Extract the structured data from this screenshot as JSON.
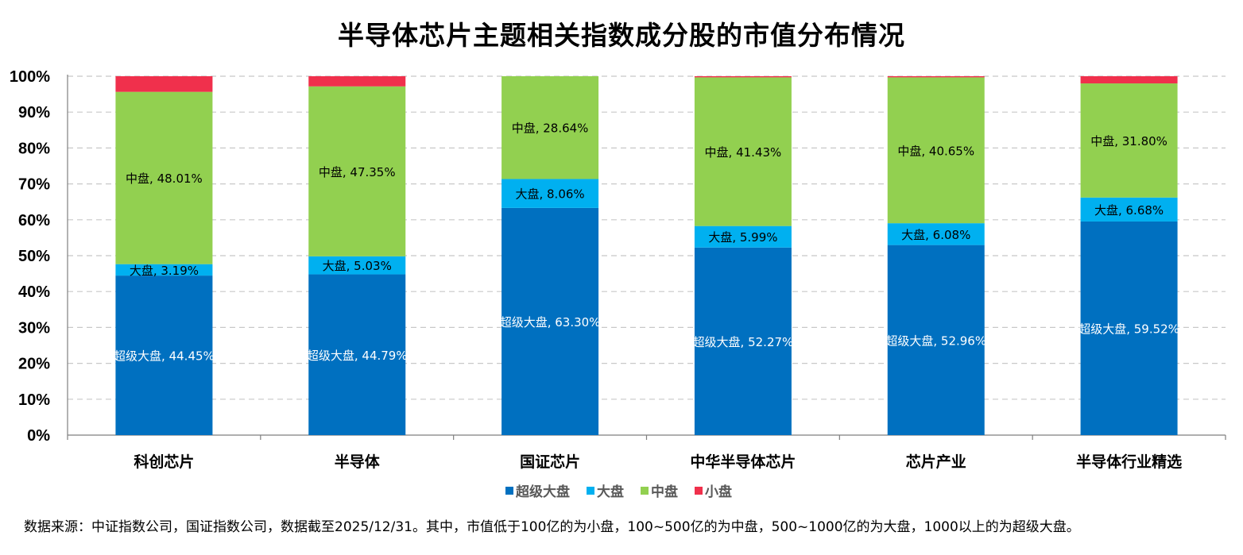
{
  "chart_data": {
    "type": "bar",
    "stacked": true,
    "title": "半导体芯片主题相关指数成分股的市值分布情况",
    "categories": [
      "科创芯片",
      "半导体",
      "国证芯片",
      "中华半导体芯片",
      "芯片产业",
      "半导体行业精选"
    ],
    "ylim": [
      0,
      100
    ],
    "yticks": [
      0,
      10,
      20,
      30,
      40,
      50,
      60,
      70,
      80,
      90,
      100
    ],
    "ytick_labels": [
      "0%",
      "10%",
      "20%",
      "30%",
      "40%",
      "50%",
      "60%",
      "70%",
      "80%",
      "90%",
      "100%"
    ],
    "grid": true,
    "legend_position": "bottom",
    "series": [
      {
        "name": "超级大盘",
        "color": "#0070C0",
        "label_color": "#ffffff",
        "values": [
          44.45,
          44.79,
          63.3,
          52.27,
          52.96,
          59.52
        ],
        "labels": [
          "超级大盘, 44.45%",
          "超级大盘, 44.79%",
          "超级大盘, 63.30%",
          "超级大盘, 52.27%",
          "超级大盘, 52.96%",
          "超级大盘, 59.52%"
        ]
      },
      {
        "name": "大盘",
        "color": "#00B0F0",
        "label_color": "#000000",
        "values": [
          3.19,
          5.03,
          8.06,
          5.99,
          6.08,
          6.68
        ],
        "labels": [
          "大盘, 3.19%",
          "大盘, 5.03%",
          "大盘, 8.06%",
          "大盘, 5.99%",
          "大盘, 6.08%",
          "大盘, 6.68%"
        ]
      },
      {
        "name": "中盘",
        "color": "#92D050",
        "label_color": "#000000",
        "values": [
          48.01,
          47.35,
          28.64,
          41.43,
          40.65,
          31.8
        ],
        "labels": [
          "中盘, 48.01%",
          "中盘, 47.35%",
          "中盘, 28.64%",
          "中盘, 41.43%",
          "中盘, 40.65%",
          "中盘, 31.80%"
        ]
      },
      {
        "name": "小盘",
        "color": "#F0304C",
        "label_color": "#000000",
        "values": [
          4.35,
          2.83,
          0.0,
          0.31,
          0.31,
          2.0
        ],
        "labels": []
      }
    ]
  },
  "footnote": "数据来源：中证指数公司，国证指数公司，数据截至2025/12/31。其中，市值低于100亿的为小盘，100~500亿的为中盘，500~1000亿的为大盘，1000以上的为超级大盘。"
}
